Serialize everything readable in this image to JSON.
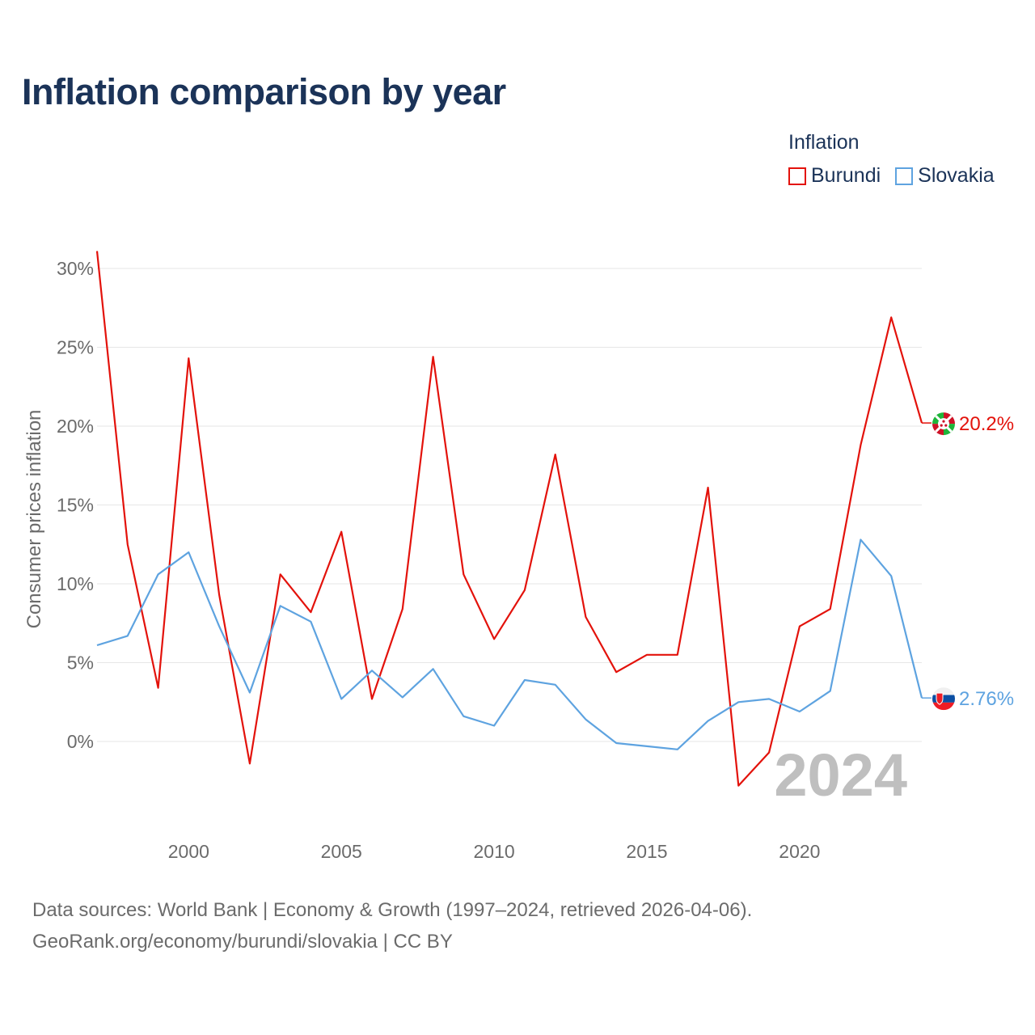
{
  "title": "Inflation comparison by year",
  "legend": {
    "title": "Inflation",
    "items": [
      {
        "label": "Burundi",
        "color": "#e3120b"
      },
      {
        "label": "Slovakia",
        "color": "#5ea3e0"
      }
    ]
  },
  "source": {
    "line1": "Data sources: World Bank | Economy & Growth (1997–2024, retrieved 2026-04-06).",
    "line2": "GeoRank.org/economy/burundi/slovakia | CC BY"
  },
  "chart_data": {
    "type": "line",
    "title": "Inflation comparison by year",
    "xlabel": "",
    "ylabel": "Consumer prices inflation",
    "year_watermark": "2024",
    "xlim": [
      1997,
      2024
    ],
    "ylim": [
      -4,
      32
    ],
    "x_ticks": [
      2000,
      2005,
      2010,
      2015,
      2020
    ],
    "y_ticks": [
      0,
      5,
      10,
      15,
      20,
      25,
      30
    ],
    "y_tick_labels": [
      "0%",
      "5%",
      "10%",
      "15%",
      "20%",
      "25%",
      "30%"
    ],
    "grid": true,
    "x": [
      1997,
      1998,
      1999,
      2000,
      2001,
      2002,
      2003,
      2004,
      2005,
      2006,
      2007,
      2008,
      2009,
      2010,
      2011,
      2012,
      2013,
      2014,
      2015,
      2016,
      2017,
      2018,
      2019,
      2020,
      2021,
      2022,
      2023,
      2024
    ],
    "series": [
      {
        "name": "Burundi",
        "color": "#e3120b",
        "end_label": "20.2%",
        "values": [
          31.1,
          12.5,
          3.4,
          24.3,
          9.3,
          -1.4,
          10.6,
          8.2,
          13.3,
          2.7,
          8.4,
          24.4,
          10.6,
          6.5,
          9.6,
          18.2,
          7.9,
          4.4,
          5.5,
          5.5,
          16.1,
          -2.8,
          -0.7,
          7.3,
          8.4,
          18.8,
          26.9,
          20.2
        ]
      },
      {
        "name": "Slovakia",
        "color": "#5ea3e0",
        "end_label": "2.76%",
        "values": [
          6.1,
          6.7,
          10.6,
          12.0,
          7.3,
          3.1,
          8.6,
          7.6,
          2.7,
          4.5,
          2.8,
          4.6,
          1.6,
          1.0,
          3.9,
          3.6,
          1.4,
          -0.1,
          -0.3,
          -0.5,
          1.3,
          2.5,
          2.7,
          1.9,
          3.2,
          12.8,
          10.5,
          2.76
        ]
      }
    ]
  }
}
